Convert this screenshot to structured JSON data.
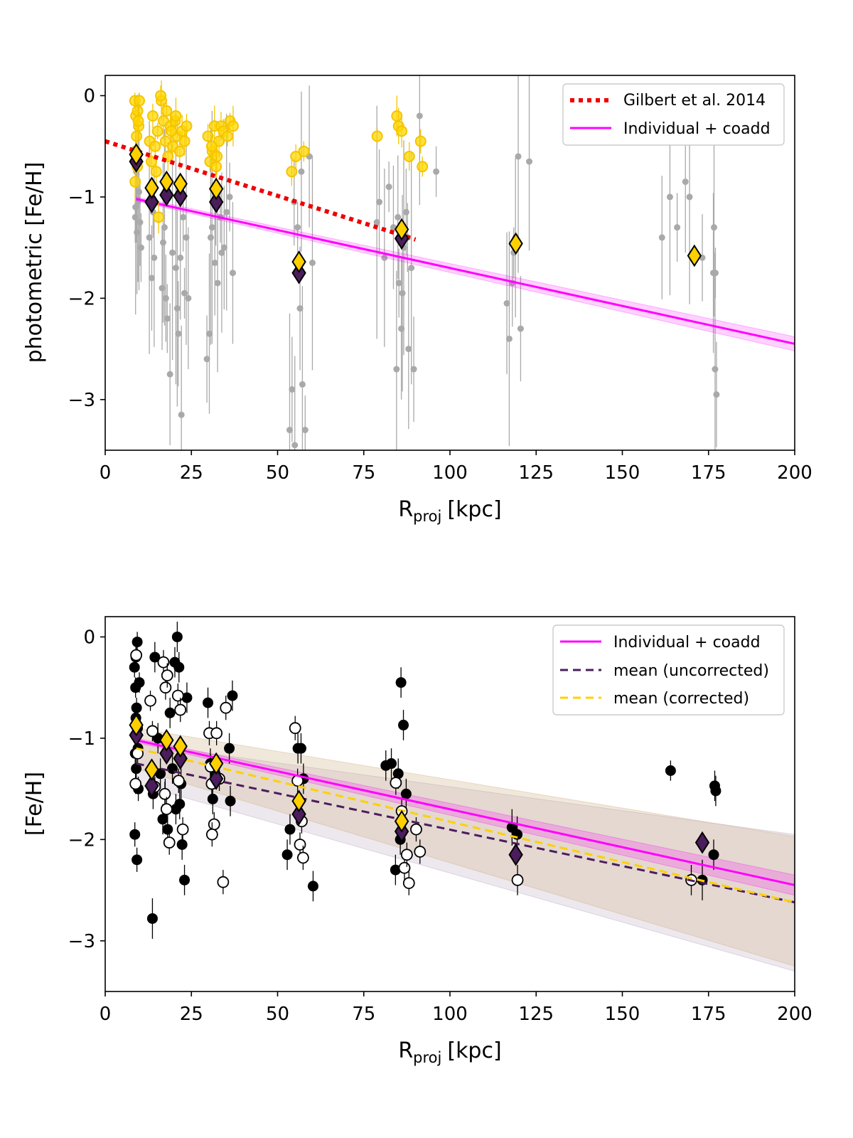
{
  "colors": {
    "gilbert": "#ee0000",
    "fit": "#ff00ff",
    "uncorrected": "#4b1d5c",
    "corrected": "#ffd000",
    "phot_points": "#ffd700",
    "phot_edge": "#f5c400",
    "grey": "#a9a9a9",
    "black": "#000000"
  },
  "chart_data": [
    {
      "type": "scatter",
      "xlabel_main": "R",
      "xlabel_sub": "proj",
      "xlabel_unit": "[kpc]",
      "ylabel": "photometric [Fe/H]",
      "xlim": [
        0,
        200
      ],
      "ylim": [
        -3.5,
        0.2
      ],
      "xticks": [
        0,
        25,
        50,
        75,
        100,
        125,
        150,
        175,
        200
      ],
      "yticks": [
        0,
        -1,
        -2,
        -3
      ],
      "grid": false,
      "legend_position": "top-right",
      "legend": [
        "Gilbert et al. 2014",
        "Individual + coadd"
      ],
      "gilbert_line": {
        "x": [
          0,
          90
        ],
        "y": [
          -0.45,
          -1.42
        ]
      },
      "fit_line": {
        "x": [
          9,
          200
        ],
        "y": [
          -1.02,
          -2.45
        ]
      },
      "fit_band": {
        "x": [
          9,
          200
        ],
        "upper": [
          -1.0,
          -2.38
        ],
        "lower": [
          -1.04,
          -2.52
        ]
      },
      "grey_points": {
        "x": [
          8.7,
          9.2,
          9.8,
          10.4,
          9.0,
          8.8,
          10.1,
          9.5,
          12.8,
          13.5,
          14.2,
          13.9,
          16.5,
          17.2,
          18.0,
          18.8,
          19.5,
          17.6,
          16.8,
          20.5,
          21.2,
          22.1,
          23.0,
          21.8,
          20.9,
          22.6,
          24.1,
          23.5,
          29.5,
          30.2,
          31.0,
          31.8,
          32.6,
          33.4,
          34.5,
          35.2,
          36.1,
          37.0,
          30.6,
          32.1,
          33.8,
          53.5,
          54.2,
          55.0,
          55.8,
          56.5,
          57.2,
          58.0,
          59.2,
          60.1,
          54.8,
          56.9,
          78.8,
          79.5,
          81.0,
          82.3,
          83.6,
          84.5,
          85.2,
          85.9,
          86.6,
          87.3,
          88.0,
          88.8,
          89.5,
          91.2,
          96.0,
          84.9,
          86.2,
          87.7,
          116.5,
          117.2,
          118.1,
          119.0,
          119.8,
          120.5,
          123.0,
          118.5,
          161.5,
          163.8,
          165.9,
          168.3,
          169.5,
          173.2,
          176.4,
          176.9,
          177.3,
          176.6,
          177.0
        ],
        "y": [
          -1.2,
          -1.35,
          -0.95,
          -1.5,
          -0.75,
          -1.1,
          -1.25,
          -1.05,
          -1.4,
          -1.8,
          -1.6,
          -1.15,
          -1.9,
          -1.3,
          -2.2,
          -2.75,
          -1.55,
          -2.0,
          -1.45,
          -1.7,
          -2.35,
          -3.15,
          -1.95,
          -1.6,
          -2.1,
          -1.2,
          -2.0,
          -1.4,
          -2.6,
          -2.35,
          -1.3,
          -1.65,
          -1.85,
          -1.2,
          -1.5,
          -1.15,
          -1.0,
          -1.75,
          -1.4,
          -1.05,
          -1.55,
          -3.3,
          -2.9,
          -3.45,
          -1.3,
          -2.1,
          -2.85,
          -3.3,
          -0.6,
          -1.65,
          -1.05,
          -0.75,
          -1.25,
          -1.05,
          -1.6,
          -0.9,
          -1.3,
          -2.7,
          -1.85,
          -2.3,
          -1.5,
          -1.15,
          -2.5,
          -1.7,
          -2.7,
          -0.2,
          -0.75,
          -1.2,
          -1.95,
          -1.4,
          -2.05,
          -2.4,
          -1.85,
          -1.4,
          -0.6,
          -2.3,
          -0.65,
          -1.55,
          -1.4,
          -1.0,
          -1.3,
          -0.85,
          -1.0,
          -1.6,
          -1.75,
          -2.7,
          -2.95,
          -1.3,
          -1.75
        ]
      },
      "yellow_points": {
        "x": [
          8.6,
          8.9,
          9.1,
          9.4,
          9.7,
          8.8,
          9.3,
          9.9,
          8.7,
          9.6,
          12.9,
          13.4,
          13.8,
          14.5,
          15.2,
          16.3,
          16.9,
          17.5,
          18.2,
          18.9,
          19.6,
          20.3,
          20.9,
          21.6,
          22.3,
          23.0,
          23.6,
          16.1,
          17.8,
          19.2,
          20.5,
          15.5,
          14.8,
          29.8,
          30.4,
          31.1,
          31.7,
          32.4,
          33.0,
          33.6,
          34.3,
          35.5,
          36.2,
          37.1,
          30.9,
          32.2,
          54.1,
          55.3,
          57.6,
          78.9,
          84.6,
          85.1,
          86.0,
          88.2,
          91.5,
          92.0
        ],
        "y": [
          -0.05,
          -0.2,
          -0.4,
          -0.15,
          -0.3,
          -0.55,
          -0.7,
          -0.05,
          -0.85,
          -0.25,
          -0.45,
          -0.65,
          -0.2,
          -0.5,
          -0.35,
          -0.05,
          -0.25,
          -0.45,
          -0.6,
          -0.3,
          -0.5,
          -0.25,
          -0.4,
          -0.55,
          -0.35,
          -0.45,
          -0.3,
          -0.0,
          -0.15,
          -0.35,
          -0.2,
          -1.2,
          -0.75,
          -0.4,
          -0.65,
          -0.55,
          -0.3,
          -0.6,
          -0.45,
          -0.3,
          -0.35,
          -0.4,
          -0.25,
          -0.3,
          -0.5,
          -0.7,
          -0.75,
          -0.6,
          -0.55,
          -0.4,
          -0.2,
          -0.3,
          -0.35,
          -0.6,
          -0.45,
          -0.7
        ]
      },
      "bins": {
        "x": [
          9,
          13.5,
          17.8,
          21.8,
          32.2,
          56.2,
          86.0,
          119.1,
          170.9
        ],
        "uncorrected": [
          -0.65,
          -1.05,
          -0.98,
          -0.99,
          -1.05,
          -1.75,
          -1.41,
          null,
          null
        ],
        "corrected": [
          -0.58,
          -0.91,
          -0.85,
          -0.87,
          -0.92,
          -1.64,
          -1.32,
          -1.46,
          -1.58
        ]
      }
    },
    {
      "type": "scatter",
      "xlabel_main": "R",
      "xlabel_sub": "proj",
      "xlabel_unit": "[kpc]",
      "ylabel": "[Fe/H]",
      "xlim": [
        0,
        200
      ],
      "ylim": [
        -3.5,
        0.2
      ],
      "xticks": [
        0,
        25,
        50,
        75,
        100,
        125,
        150,
        175,
        200
      ],
      "yticks": [
        0,
        -1,
        -2,
        -3
      ],
      "grid": false,
      "legend_position": "top-right",
      "legend": [
        "Individual + coadd",
        "mean (uncorrected)",
        "mean (corrected)"
      ],
      "fit_line": {
        "x": [
          9,
          200
        ],
        "y": [
          -1.02,
          -2.45
        ]
      },
      "fit_band": {
        "x": [
          9,
          200
        ],
        "upper": [
          -1.0,
          -2.35
        ],
        "lower": [
          -1.04,
          -2.55
        ]
      },
      "uncorrected_line": {
        "x": [
          9,
          200
        ],
        "y": [
          -1.25,
          -2.62
        ]
      },
      "uncorrected_band": {
        "x": [
          9,
          200
        ],
        "upper": [
          -1.05,
          -1.95
        ],
        "lower": [
          -1.45,
          -3.3
        ]
      },
      "corrected_line": {
        "x": [
          9,
          200
        ],
        "y": [
          -1.1,
          -2.62
        ]
      },
      "corrected_band": {
        "x": [
          9,
          200
        ],
        "upper": [
          -0.9,
          -1.97
        ],
        "lower": [
          -1.3,
          -3.25
        ]
      },
      "filled_points": {
        "x": [
          8.5,
          8.8,
          9.1,
          9.4,
          8.7,
          9.0,
          9.6,
          8.6,
          9.2,
          9.9,
          8.9,
          9.5,
          13.7,
          14.4,
          15.3,
          16.0,
          16.7,
          17.4,
          18.1,
          18.8,
          19.5,
          20.2,
          20.9,
          21.6,
          22.3,
          23.0,
          23.7,
          20.5,
          21.4,
          22.0,
          13.9,
          29.8,
          30.5,
          31.2,
          31.9,
          36.0,
          36.9,
          36.3,
          52.8,
          53.6,
          55.9,
          56.8,
          57.5,
          60.3,
          81.4,
          83.0,
          84.2,
          85.0,
          85.8,
          86.5,
          87.3,
          85.6,
          118.0,
          119.5,
          173.2,
          176.8,
          177.1,
          176.5,
          164.0,
          9.3,
          8.9
        ],
        "y": [
          -0.3,
          -0.5,
          -0.7,
          -0.9,
          -1.15,
          -1.3,
          -1.5,
          -1.95,
          -2.2,
          -0.45,
          -0.8,
          -1.1,
          -2.78,
          -0.2,
          -1.0,
          -1.35,
          -1.8,
          -1.55,
          -1.9,
          -0.75,
          -1.3,
          -0.25,
          -0.0,
          -1.65,
          -2.05,
          -2.4,
          -0.6,
          -1.7,
          -0.3,
          -1.45,
          -1.55,
          -0.65,
          -1.25,
          -1.6,
          -1.35,
          -1.1,
          -0.58,
          -1.62,
          -2.15,
          -1.9,
          -1.1,
          -1.1,
          -1.4,
          -2.46,
          -1.27,
          -1.25,
          -2.3,
          -1.35,
          -0.45,
          -0.87,
          -1.55,
          -2.0,
          -1.88,
          -1.95,
          -2.4,
          -1.47,
          -1.52,
          -2.15,
          -1.32,
          -0.05,
          -0.2
        ],
        "yerr": [
          0.1,
          0.1,
          0.1,
          0.1,
          0.1,
          0.1,
          0.12,
          0.12,
          0.12,
          0.1,
          0.1,
          0.1,
          0.2,
          0.15,
          0.15,
          0.15,
          0.15,
          0.15,
          0.15,
          0.15,
          0.15,
          0.15,
          0.15,
          0.15,
          0.15,
          0.15,
          0.15,
          0.15,
          0.15,
          0.15,
          0.15,
          0.15,
          0.15,
          0.15,
          0.15,
          0.15,
          0.15,
          0.15,
          0.15,
          0.15,
          0.15,
          0.15,
          0.15,
          0.15,
          0.15,
          0.15,
          0.15,
          0.15,
          0.15,
          0.15,
          0.15,
          0.15,
          0.18,
          0.18,
          0.2,
          0.15,
          0.15,
          0.15,
          0.1,
          0.1,
          0.1
        ]
      },
      "open_points": {
        "x": [
          9.0,
          9.4,
          8.8,
          13.1,
          13.7,
          14.4,
          16.9,
          17.5,
          18.0,
          17.3,
          17.8,
          18.6,
          21.1,
          21.8,
          22.5,
          21.3,
          30.2,
          30.9,
          31.6,
          32.3,
          33.1,
          34.2,
          35.0,
          31.0,
          30.6,
          55.1,
          55.8,
          56.5,
          57.0,
          84.3,
          86.0,
          86.8,
          87.5,
          88.1,
          90.2,
          91.3,
          119.6,
          170.0,
          57.4
        ],
        "y": [
          -0.18,
          -1.15,
          -1.45,
          -0.63,
          -0.93,
          -1.48,
          -0.25,
          -0.5,
          -0.38,
          -1.55,
          -1.7,
          -2.03,
          -0.58,
          -0.72,
          -1.9,
          -1.42,
          -0.95,
          -1.45,
          -1.85,
          -0.95,
          -1.4,
          -2.42,
          -0.7,
          -1.95,
          -1.28,
          -0.9,
          -1.42,
          -2.05,
          -1.82,
          -1.44,
          -1.72,
          -2.28,
          -2.15,
          -2.43,
          -1.9,
          -2.12,
          -2.4,
          -2.4,
          -2.18
        ],
        "yerr": [
          0.1,
          0.1,
          0.1,
          0.1,
          0.1,
          0.1,
          0.12,
          0.12,
          0.12,
          0.12,
          0.12,
          0.12,
          0.12,
          0.12,
          0.12,
          0.12,
          0.12,
          0.12,
          0.12,
          0.12,
          0.12,
          0.12,
          0.12,
          0.12,
          0.12,
          0.12,
          0.12,
          0.12,
          0.12,
          0.12,
          0.12,
          0.12,
          0.12,
          0.12,
          0.12,
          0.12,
          0.15,
          0.15,
          0.12
        ]
      },
      "bins": {
        "x": [
          9,
          13.5,
          17.8,
          21.8,
          32.2,
          56.2,
          86.0,
          119.1,
          173.2
        ],
        "uncorrected": [
          -0.97,
          -1.47,
          -1.15,
          -1.2,
          -1.4,
          -1.75,
          -1.92,
          -2.15,
          -2.03
        ],
        "corrected": [
          -0.87,
          -1.31,
          -1.02,
          -1.08,
          -1.25,
          -1.62,
          -1.82,
          null,
          null
        ]
      }
    }
  ]
}
